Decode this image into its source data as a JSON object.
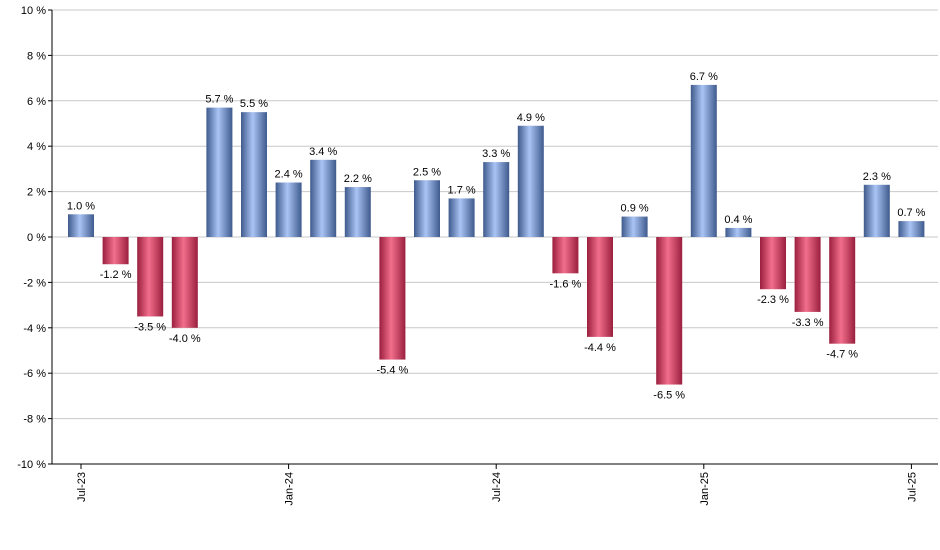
{
  "chart_data": {
    "type": "bar",
    "title": "",
    "xlabel": "",
    "ylabel": "",
    "ylim": [
      -10,
      10
    ],
    "y_ticks": [
      10,
      8,
      6,
      4,
      2,
      0,
      -2,
      -4,
      -6,
      -8,
      -10
    ],
    "y_tick_suffix": " %",
    "grid": true,
    "x_ticks": [
      {
        "index": 0,
        "label": "Jul-23"
      },
      {
        "index": 6,
        "label": "Jan-24"
      },
      {
        "index": 12,
        "label": "Jul-24"
      },
      {
        "index": 18,
        "label": "Jan-25"
      },
      {
        "index": 24,
        "label": "Jul-25"
      }
    ],
    "categories": [
      "Jul-23",
      "Aug-23",
      "Sep-23",
      "Oct-23",
      "Nov-23",
      "Dec-23",
      "Jan-24",
      "Feb-24",
      "Mar-24",
      "Apr-24",
      "May-24",
      "Jun-24",
      "Jul-24",
      "Aug-24",
      "Sep-24",
      "Oct-24",
      "Nov-24",
      "Dec-24",
      "Jan-25",
      "Feb-25",
      "Mar-25",
      "Apr-25",
      "May-25",
      "Jun-25",
      "Jul-25"
    ],
    "values": [
      1.0,
      -1.2,
      -3.5,
      -4.0,
      5.7,
      5.5,
      2.4,
      3.4,
      2.2,
      -5.4,
      2.5,
      1.7,
      3.3,
      4.9,
      -1.6,
      -4.4,
      0.9,
      -6.5,
      6.7,
      0.4,
      -2.3,
      -3.3,
      -4.7,
      2.3,
      0.7
    ],
    "value_labels": [
      "1.0 %",
      "-1.2 %",
      "-3.5 %",
      "-4.0 %",
      "5.7 %",
      "5.5 %",
      "2.4 %",
      "3.4 %",
      "2.2 %",
      "-5.4 %",
      "2.5 %",
      "1.7 %",
      "3.3 %",
      "4.9 %",
      "-1.6 %",
      "-4.4 %",
      "0.9 %",
      "-6.5 %",
      "6.7 %",
      "0.4 %",
      "-2.3 %",
      "-3.3 %",
      "-4.7 %",
      "2.3 %",
      "0.7 %"
    ],
    "colors": {
      "positive_light": "#a9c4f5",
      "positive_dark": "#3f5a8c",
      "negative_light": "#f26f8c",
      "negative_dark": "#9a1f3e",
      "grid": "#c8c8c8",
      "axis": "#000000"
    }
  }
}
